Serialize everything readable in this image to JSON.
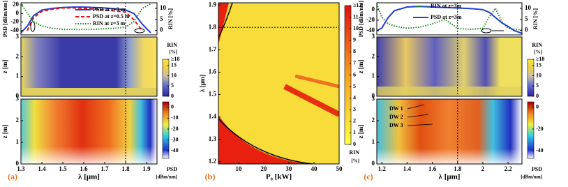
{
  "chart_data": [
    {
      "type": "line",
      "ylabel": "PSD [dBm/nm]",
      "y2label": "RIN [%]",
      "x": [
        1.3,
        1.33,
        1.36,
        1.4,
        1.45,
        1.5,
        1.55,
        1.6,
        1.65,
        1.7,
        1.75,
        1.8,
        1.84,
        1.88,
        1.92
      ],
      "series": [
        {
          "name": "PSD at z=3 m",
          "color": "#1f3fd0",
          "dash": "solid",
          "values": [
            -45,
            -30,
            -5,
            8,
            12,
            14,
            15,
            15,
            14,
            13,
            11,
            8,
            0,
            -25,
            -45
          ]
        },
        {
          "name": "PSD at z=0.5 m",
          "color": "#e01010",
          "dash": "dashed",
          "values": [
            null,
            -40,
            -10,
            5,
            10,
            13,
            13,
            12,
            10,
            8,
            6,
            3,
            -15,
            -40,
            null
          ]
        },
        {
          "name": "RIN at z=3 m",
          "color": "#1a8a1a",
          "dash": "dotted",
          "axis": "y2",
          "values": [
            12,
            8,
            4,
            2,
            1,
            0.5,
            0.5,
            0.5,
            0.5,
            0.8,
            1,
            1.5,
            4,
            10,
            12
          ]
        }
      ],
      "xlim": [
        1.3,
        1.95
      ],
      "ylim": [
        -50,
        25
      ],
      "yticks": [
        20,
        0,
        -20,
        -40
      ],
      "y2lim": [
        -2,
        12.5
      ],
      "y2ticks": [
        10,
        5,
        0
      ],
      "vline": 1.8
    },
    {
      "type": "heatmap",
      "ylabel": "z [m]",
      "xlim": [
        1.3,
        1.95
      ],
      "ylim": [
        0,
        3
      ],
      "yticks": [
        0,
        1,
        2,
        3
      ],
      "vline": 1.8,
      "colorbar": {
        "title": "RIN",
        "unit": "[%]",
        "lim": [
          0,
          18
        ],
        "ticks": [
          {
            "value": 18,
            "label": "≥18"
          },
          15,
          10,
          5,
          0
        ]
      }
    },
    {
      "type": "heatmap",
      "ylabel": "z [m]",
      "xlabel": "λ [μm]",
      "panel": "(a)",
      "xlim": [
        1.3,
        1.95
      ],
      "ylim": [
        0,
        3
      ],
      "yticks": [
        0,
        1,
        2,
        3
      ],
      "xticks": [
        1.3,
        1.4,
        1.5,
        1.6,
        1.7,
        1.8,
        1.9
      ],
      "vline": 1.8,
      "colorbar": {
        "title": "PSD",
        "unit": "[dBm/nm]",
        "lim": [
          -47,
          5
        ],
        "ticks": [
          0,
          -10,
          -20,
          -30,
          -40
        ]
      }
    },
    {
      "type": "heatmap",
      "ylabel": "λ [μm]",
      "xlabel": "P₀ [kW]",
      "panel": "(b)",
      "xlim": [
        2,
        50
      ],
      "ylim": [
        1.19,
        1.91
      ],
      "xticks": [
        10,
        20,
        30,
        40,
        50
      ],
      "yticks": [
        1.2,
        1.3,
        1.4,
        1.5,
        1.6,
        1.7,
        1.8,
        1.9
      ],
      "hline": 1.8,
      "colorbar": {
        "title": "RIN",
        "unit": "[%]",
        "lim": [
          0,
          12
        ],
        "ticks": [
          {
            "value": 12,
            "label": "≥12"
          },
          11,
          10,
          9,
          8,
          7,
          6,
          5,
          4,
          3,
          2,
          1,
          0
        ]
      }
    },
    {
      "type": "line",
      "ylabel": "PSD [dBm/nm]",
      "y2label": "RIN [%]",
      "x": [
        1.16,
        1.2,
        1.25,
        1.3,
        1.4,
        1.5,
        1.6,
        1.7,
        1.8,
        1.9,
        2.0,
        2.05,
        2.1,
        2.15,
        2.2,
        2.25,
        2.31
      ],
      "series": [
        {
          "name": "RIN at z=3m",
          "color": "#1a8a1a",
          "dash": "dotted",
          "axis": "y2",
          "values": [
            12,
            6,
            3,
            2,
            1,
            1.5,
            3,
            5,
            1,
            0.5,
            1,
            6,
            10,
            4,
            1,
            0.5,
            0.3
          ]
        },
        {
          "name": "PSD at z=3m",
          "color": "#1f3fd0",
          "dash": "solid",
          "values": [
            -40,
            -35,
            -15,
            -2,
            5,
            6,
            5,
            4,
            3,
            2,
            0,
            -5,
            -15,
            -25,
            -32,
            -40,
            -45
          ]
        }
      ],
      "xlim": [
        1.16,
        2.31
      ],
      "ylim": [
        -48,
        13
      ],
      "yticks": [
        0,
        -20,
        -40
      ],
      "y2lim": [
        -2,
        12.5
      ],
      "y2ticks": [
        10,
        5,
        0
      ],
      "vline": 1.8
    },
    {
      "type": "heatmap",
      "ylabel": "z [m]",
      "xlim": [
        1.16,
        2.31
      ],
      "ylim": [
        0,
        3
      ],
      "yticks": [
        0,
        1,
        2,
        3
      ],
      "vline": 1.8,
      "colorbar": {
        "title": "RIN",
        "unit": "[%]",
        "lim": [
          0,
          18
        ],
        "ticks": [
          {
            "value": 18,
            "label": "≥18"
          },
          15,
          10,
          5,
          0
        ]
      }
    },
    {
      "type": "heatmap",
      "ylabel": "z [m]",
      "xlabel": "λ [μm]",
      "panel": "(c)",
      "xlim": [
        1.16,
        2.31
      ],
      "ylim": [
        0,
        3
      ],
      "yticks": [
        0,
        1,
        2,
        3
      ],
      "xticks": [
        1.2,
        1.4,
        1.6,
        1.8,
        2,
        2.2
      ],
      "vline": 1.8,
      "annotations": [
        "DW 1",
        "DW 2",
        "DW 3"
      ],
      "colorbar": {
        "title": "PSD",
        "unit": "[dBm/nm]",
        "lim": [
          -47,
          5
        ],
        "ticks": [
          0,
          -20,
          -40
        ]
      }
    }
  ]
}
